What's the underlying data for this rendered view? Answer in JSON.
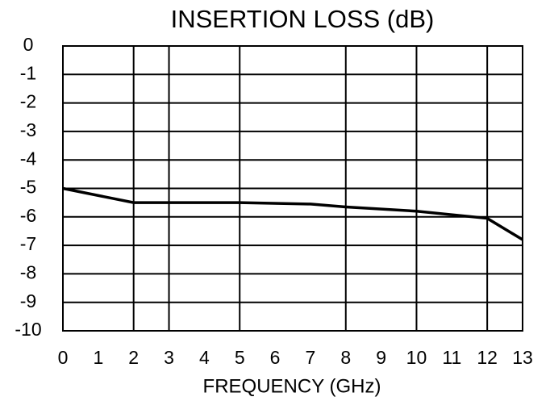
{
  "chart_data": {
    "type": "line",
    "title": "INSERTION LOSS (dB)",
    "x_label": "FREQUENCY (GHz)",
    "x": [
      0,
      2,
      5,
      7,
      8,
      10,
      12,
      13
    ],
    "series": [
      {
        "color": "#000000",
        "values": [
          -5,
          -5.5,
          -5.5,
          -5.55,
          -5.65,
          -5.8,
          -6.05,
          -6.8
        ]
      }
    ],
    "xlim": [
      0,
      13
    ],
    "xticks": [
      0,
      1,
      2,
      3,
      4,
      5,
      6,
      7,
      8,
      9,
      10,
      11,
      12,
      13
    ],
    "xgrid": [
      2,
      3,
      5,
      8,
      10,
      12
    ],
    "ylim": [
      -10,
      0
    ],
    "yticks": [
      0,
      -1,
      -2,
      -3,
      -4,
      -5,
      -6,
      -7,
      -8,
      -9,
      -10
    ],
    "grid": true
  }
}
